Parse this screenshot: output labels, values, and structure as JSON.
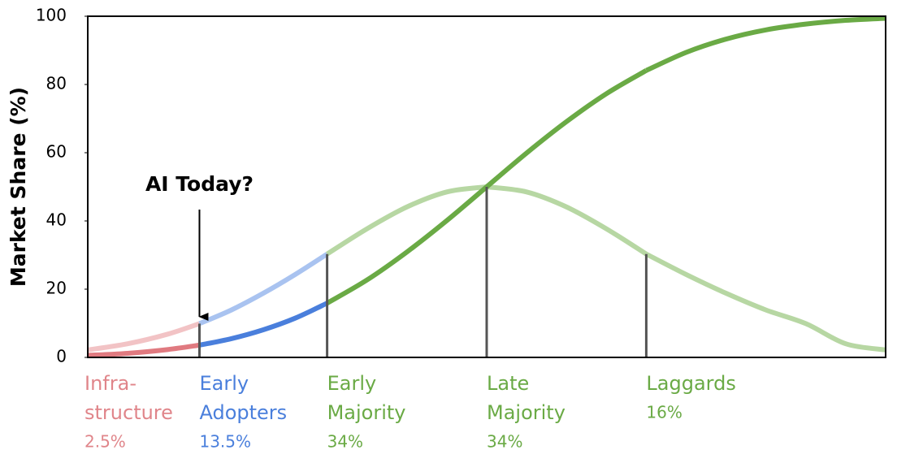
{
  "chart_data": {
    "type": "line",
    "y_label": "Market Share (%)",
    "ylim": [
      0,
      100
    ],
    "yticks": [
      0,
      20,
      40,
      60,
      80,
      100
    ],
    "xlim": [
      -2.5,
      2.5
    ],
    "x": [
      -2.5,
      -2.25,
      -2,
      -1.8,
      -1.6,
      -1.4,
      -1.2,
      -1,
      -0.75,
      -0.5,
      -0.25,
      0,
      0.25,
      0.5,
      0.75,
      1,
      1.25,
      1.5,
      1.75,
      2,
      2.25,
      2.5
    ],
    "series": [
      {
        "values": [
          2.2,
          4.0,
          6.8,
          9.9,
          13.9,
          18.8,
          24.3,
          30.3,
          37.7,
          44.1,
          48.5,
          50,
          48.5,
          44.1,
          37.7,
          30.3,
          24.3,
          18.8,
          13.9,
          9.9,
          4.0,
          2.2
        ],
        "colors": [
          "#f2c3c5",
          "#a9c3f0",
          "#b7d7a3",
          "#b7d7a3",
          "#b7d7a3"
        ]
      },
      {
        "values": [
          0.6,
          1.2,
          2.3,
          3.6,
          5.5,
          8.1,
          11.5,
          15.9,
          22.7,
          30.9,
          40.1,
          50,
          59.9,
          69.1,
          77.3,
          84.1,
          89.4,
          93.3,
          96.0,
          97.7,
          98.8,
          99.4
        ],
        "colors": [
          "#e07a80",
          "#4a7fdc",
          "#6aaa45",
          "#6aaa45",
          "#6aaa45"
        ]
      }
    ],
    "segments": {
      "bounds": [
        -2.5,
        -1.8,
        -1,
        0,
        1,
        2.5
      ],
      "labels": [
        [
          "Infra-",
          "structure"
        ],
        [
          "Early",
          "Adopters"
        ],
        [
          "Early",
          "Majority"
        ],
        [
          "Late",
          "Majority"
        ],
        [
          "Laggards"
        ]
      ],
      "values": [
        2.5,
        13.5,
        34,
        34,
        16
      ],
      "value_labels": [
        "2.5%",
        "13.5%",
        "34%",
        "34%",
        "16%"
      ],
      "colors": [
        "#e0858a",
        "#4a7fdc",
        "#6aaa45",
        "#6aaa45",
        "#6aaa45"
      ]
    },
    "annotation": {
      "text": "AI Today?"
    }
  }
}
